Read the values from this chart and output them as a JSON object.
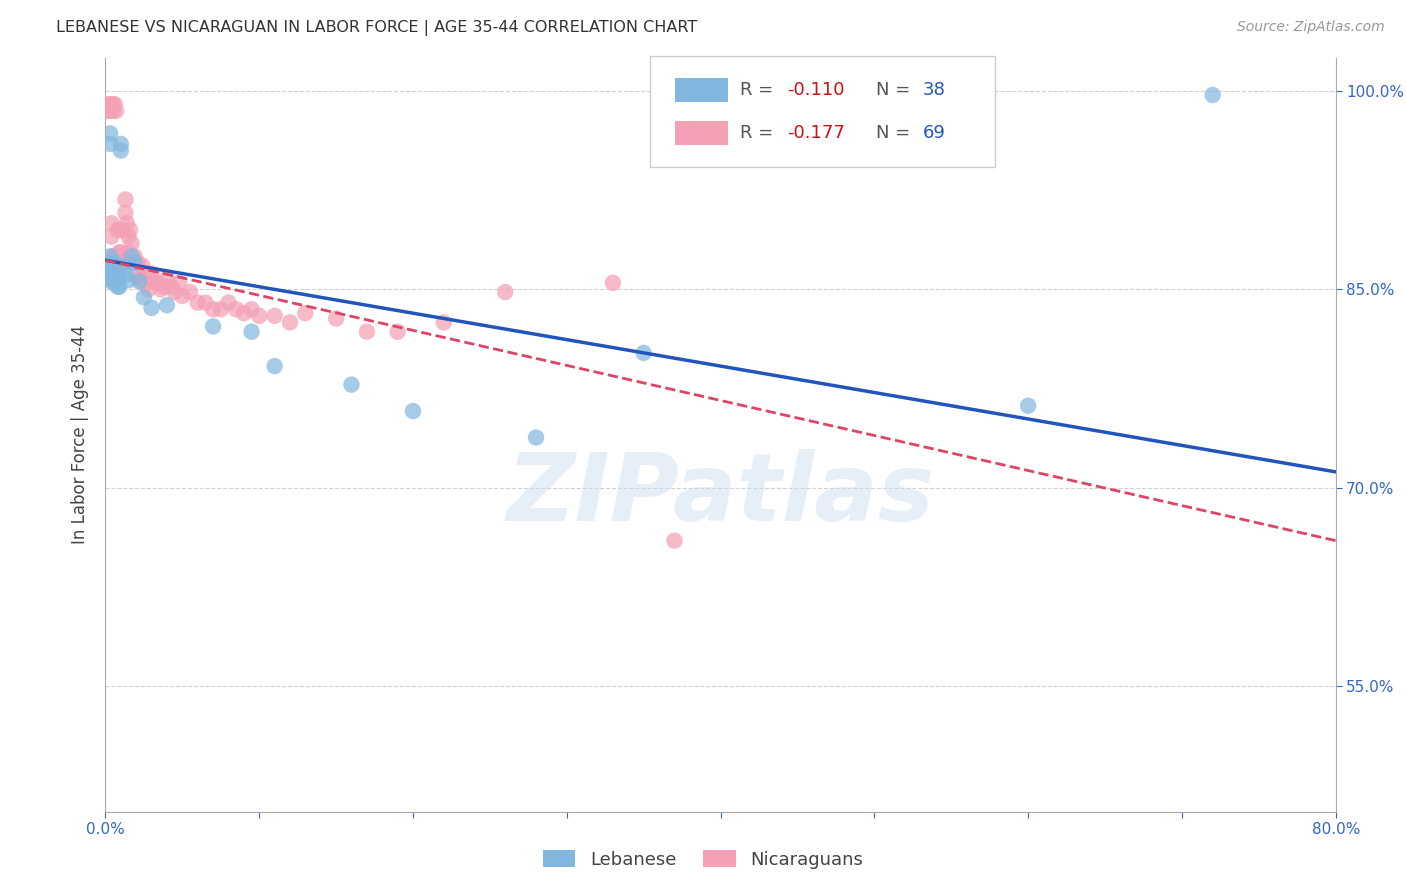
{
  "title": "LEBANESE VS NICARAGUAN IN LABOR FORCE | AGE 35-44 CORRELATION CHART",
  "source": "Source: ZipAtlas.com",
  "ylabel_label": "In Labor Force | Age 35-44",
  "xlim": [
    0.0,
    0.8
  ],
  "ylim": [
    0.455,
    1.025
  ],
  "xtick_pos": [
    0.0,
    0.1,
    0.2,
    0.3,
    0.4,
    0.5,
    0.6,
    0.7,
    0.8
  ],
  "xtick_lbl": [
    "0.0%",
    "",
    "",
    "",
    "",
    "",
    "",
    "",
    "80.0%"
  ],
  "ytick_pos": [
    0.55,
    0.7,
    0.85,
    1.0
  ],
  "ytick_lbl": [
    "55.0%",
    "70.0%",
    "85.0%",
    "100.0%"
  ],
  "color_leb": "#82b8e0",
  "color_nic": "#f4a0b5",
  "color_leb_line": "#2255bb",
  "color_nic_line": "#dd4466",
  "leb_intercept": 0.872,
  "leb_slope": -0.2,
  "nic_intercept": 0.872,
  "nic_slope": -0.265,
  "leb_x": [
    0.001,
    0.002,
    0.002,
    0.003,
    0.003,
    0.003,
    0.004,
    0.004,
    0.005,
    0.005,
    0.005,
    0.006,
    0.006,
    0.007,
    0.007,
    0.008,
    0.008,
    0.009,
    0.01,
    0.01,
    0.012,
    0.013,
    0.015,
    0.017,
    0.019,
    0.022,
    0.025,
    0.03,
    0.04,
    0.07,
    0.095,
    0.11,
    0.16,
    0.2,
    0.28,
    0.35,
    0.6,
    0.72
  ],
  "leb_y": [
    0.87,
    0.862,
    0.858,
    0.875,
    0.968,
    0.96,
    0.864,
    0.857,
    0.87,
    0.862,
    0.855,
    0.87,
    0.862,
    0.862,
    0.856,
    0.858,
    0.852,
    0.852,
    0.96,
    0.955,
    0.867,
    0.861,
    0.857,
    0.875,
    0.87,
    0.856,
    0.844,
    0.836,
    0.838,
    0.822,
    0.818,
    0.792,
    0.778,
    0.758,
    0.738,
    0.802,
    0.762,
    0.997
  ],
  "nic_x": [
    0.001,
    0.002,
    0.002,
    0.003,
    0.003,
    0.004,
    0.004,
    0.005,
    0.005,
    0.005,
    0.006,
    0.006,
    0.007,
    0.007,
    0.008,
    0.008,
    0.008,
    0.009,
    0.009,
    0.01,
    0.01,
    0.011,
    0.012,
    0.013,
    0.013,
    0.014,
    0.015,
    0.015,
    0.016,
    0.017,
    0.018,
    0.019,
    0.02,
    0.021,
    0.022,
    0.024,
    0.025,
    0.027,
    0.028,
    0.03,
    0.032,
    0.034,
    0.036,
    0.038,
    0.04,
    0.043,
    0.045,
    0.048,
    0.05,
    0.055,
    0.06,
    0.065,
    0.07,
    0.075,
    0.08,
    0.085,
    0.09,
    0.095,
    0.1,
    0.11,
    0.12,
    0.13,
    0.15,
    0.17,
    0.19,
    0.22,
    0.26,
    0.33,
    0.37
  ],
  "nic_y": [
    0.868,
    0.99,
    0.985,
    0.99,
    0.985,
    0.9,
    0.89,
    0.99,
    0.985,
    0.875,
    0.99,
    0.875,
    0.985,
    0.875,
    0.895,
    0.875,
    0.865,
    0.878,
    0.868,
    0.895,
    0.878,
    0.895,
    0.875,
    0.918,
    0.908,
    0.9,
    0.89,
    0.878,
    0.895,
    0.885,
    0.87,
    0.875,
    0.86,
    0.87,
    0.858,
    0.868,
    0.855,
    0.862,
    0.85,
    0.862,
    0.855,
    0.855,
    0.85,
    0.852,
    0.858,
    0.852,
    0.848,
    0.855,
    0.845,
    0.848,
    0.84,
    0.84,
    0.835,
    0.835,
    0.84,
    0.835,
    0.832,
    0.835,
    0.83,
    0.83,
    0.825,
    0.832,
    0.828,
    0.818,
    0.818,
    0.825,
    0.848,
    0.855,
    0.66
  ]
}
